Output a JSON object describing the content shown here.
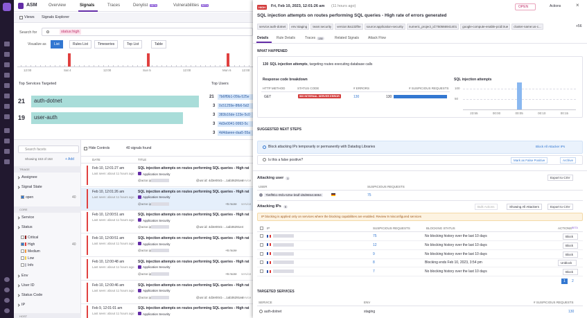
{
  "header": {
    "app": "ASM",
    "tabs": [
      {
        "label": "Overview"
      },
      {
        "label": "Signals"
      },
      {
        "label": "Traces"
      },
      {
        "label": "Denylist",
        "badge": "BETA"
      },
      {
        "label": "Vulnerabilities",
        "badge": "BETA"
      }
    ]
  },
  "subnav": {
    "views": "Views",
    "title": "Signals Explorer"
  },
  "search": {
    "label": "Search for",
    "query": "status:high"
  },
  "visualize": {
    "label": "Visualize as",
    "options": [
      "List",
      "Rules List",
      "Timeseries",
      "Top List",
      "Table"
    ]
  },
  "timeline": {
    "labels": [
      "12:00",
      "Sat 4",
      "12:00",
      "Sun 5",
      "12:00",
      "Mon 6",
      "12:00"
    ]
  },
  "top_services": {
    "title": "Top Services Targeted",
    "items": [
      {
        "count": 21,
        "name": "auth-dotnet"
      },
      {
        "count": 19,
        "name": "user-auth"
      }
    ]
  },
  "top_users": {
    "title": "Top Users",
    "items": [
      {
        "count": 21,
        "name": "7b6ff9b1-05fa-525e"
      },
      {
        "count": 3,
        "name": "0c51259e-8fb6-5d2"
      },
      {
        "count": 3,
        "name": "383b16de-123e-5c0"
      },
      {
        "count": 3,
        "name": "4d3e0041-9993-5c"
      },
      {
        "count": 3,
        "name": "4d4daeee-daa5-55a"
      }
    ]
  },
  "facets": {
    "search": "Search facets",
    "showing": "Showing 153 of 153",
    "add": "+ Add",
    "items": [
      {
        "kind": "section",
        "label": "TRIAGE"
      },
      {
        "kind": "facet",
        "label": "Assignee"
      },
      {
        "kind": "facet",
        "label": "Signal State"
      },
      {
        "kind": "option",
        "label": "open",
        "count": 40,
        "checked": true
      },
      {
        "kind": "section",
        "label": "CORE"
      },
      {
        "kind": "facet",
        "label": "Service"
      },
      {
        "kind": "facet",
        "label": "Status"
      },
      {
        "kind": "option",
        "label": "Critical",
        "color": "#8b1a1a",
        "checked": false
      },
      {
        "kind": "option",
        "label": "High",
        "count": 40,
        "color": "#e0403f",
        "checked": true
      },
      {
        "kind": "option",
        "label": "Medium",
        "color": "#f0963c",
        "checked": false
      },
      {
        "kind": "option",
        "label": "Low",
        "color": "#f5d04a",
        "checked": false
      },
      {
        "kind": "option",
        "label": "Info",
        "color": "#b8b8c4",
        "checked": false
      },
      {
        "kind": "facet",
        "label": "Env"
      },
      {
        "kind": "facet",
        "label": "User ID"
      },
      {
        "kind": "facet",
        "label": "Status Code"
      },
      {
        "kind": "facet",
        "label": "IP"
      },
      {
        "kind": "section",
        "label": "HOST"
      }
    ]
  },
  "signals": {
    "hide": "Hide Controls",
    "found": "40 signals found",
    "columns": [
      "DATE",
      "TITLE"
    ],
    "rows": [
      {
        "date": "Feb 10, 12:01:27 am",
        "seen": "Last seen: about 11 hours ago",
        "title": "SQL injection attempts on routes performing SQL queries - High rat",
        "source": "Application Security",
        "ip": "@actor.ip:",
        "extra": "@usr.id: 4d3e0041-...1ab36291e4",
        "tail": "service"
      },
      {
        "date": "Feb 10, 12:01:26 am",
        "seen": "Last seen: about 11 hours ago",
        "title": "SQL injection attempts on routes performing SQL queries - High rat",
        "source": "Application Security",
        "ip": "@actor.ip:",
        "extra": "+5 more",
        "tail": "service",
        "selected": true
      },
      {
        "date": "Feb 10, 12:00:51 am",
        "seen": "Last seen: about 11 hours ago",
        "title": "SQL injection attempts on routes performing SQL queries - High rat",
        "source": "Application Security",
        "ip": "@actor.ip:",
        "extra": "@usr.id: 4d3e0041-...1ab36291e4"
      },
      {
        "date": "Feb 10, 12:00:51 am",
        "seen": "Last seen: about 11 hours ago",
        "title": "SQL injection attempts on routes performing SQL queries - High rat",
        "source": "Application Security",
        "ip": "@actor.ip:",
        "extra": "+6 more"
      },
      {
        "date": "Feb 10, 12:00:48 am",
        "seen": "Last seen: about 11 hours ago",
        "title": "SQL injection attempts on routes performing SQL queries - High rat",
        "source": "Application Security",
        "ip": "@actor.ip:",
        "extra": "+6 more",
        "tail": "service"
      },
      {
        "date": "Feb 10, 12:00:46 am",
        "seen": "Last seen: about 11 hours ago",
        "title": "SQL injection attempts on routes performing SQL queries - High rat",
        "source": "Application Security",
        "ip": "@actor.ip:",
        "extra": "@usr.id: 4d3e0041-...1ab36291e4",
        "tail": "service"
      },
      {
        "date": "Feb 9, 12:01:01 am",
        "seen": "Last seen: about 11 hours ago",
        "title": "SQL injection attempts on routes performing SQL queries - High rat",
        "source": "Application Security",
        "ip": "@actor.ip:",
        "extra": "+6 more"
      }
    ]
  },
  "panel": {
    "severity": "HIGH",
    "timestamp": "Fri, Feb 10, 2023, 12:01:26 am",
    "ago": "(11 hours ago)",
    "state": "OPEN",
    "actions": "Actions",
    "title": "SQL injection attempts on routes performing SQL queries - High rate of errors generated",
    "tags": [
      "service:auth-dotnet",
      "env:staging",
      "team:security",
      "version:8a132f0e",
      "source:application-security",
      "numeric_project_id:750566941401",
      "google-compute-enable-pcid:true",
      "cluster-name:us-c..."
    ],
    "more_tags": "+56",
    "tabs": [
      {
        "label": "Details"
      },
      {
        "label": "Rule Details"
      },
      {
        "label": "Traces",
        "count": 130
      },
      {
        "label": "Related Signals"
      },
      {
        "label": "Attack Flow"
      }
    ],
    "what_happened": {
      "heading": "WHAT HAPPENED",
      "count": 130,
      "summary": "SQL injection attempts",
      "summary_rest": ", targeting routes executing database calls",
      "breakdown": {
        "title": "Response code breakdown",
        "columns": [
          "HTTP METHOD",
          "STATUS CODE",
          "# ERRORS",
          "# SUSPICIOUS REQUESTS"
        ],
        "rows": [
          {
            "method": "GET",
            "status": "500 INTERNAL SERVER ERROR",
            "errors": 130,
            "suspicious": 130
          }
        ]
      },
      "chart": {
        "type": "bar",
        "title": "SQL injection attempts",
        "categories": [
          "23:55",
          "00:00",
          "00:05",
          "00:10",
          "00:15"
        ],
        "values": [
          0,
          0,
          130,
          0,
          0
        ],
        "color": "#8ab8f0",
        "ylim": [
          0,
          150
        ],
        "yticks": [
          50,
          100
        ]
      }
    },
    "next_steps": {
      "heading": "SUGGESTED NEXT STEPS",
      "block_text": "Block attacking IPs temporarily or permanently with Datadog Libraries",
      "block_action": "Block All Attacker IPs",
      "fp_text": "Is this a false positive?",
      "fp_action": "Mark as False Positive",
      "archive": "Archive"
    },
    "attacking_user": {
      "heading": "Attacking user",
      "count": 1,
      "export": "Export to CSV",
      "columns": [
        "USER",
        "SUSPICIOUS REQUESTS"
      ],
      "rows": [
        {
          "user": "7b6ff9b1-05fa-525e-b6df-d8d9654c6864",
          "requests": 75
        }
      ]
    },
    "attacking_ips": {
      "heading": "Attacking IPs",
      "count": 9,
      "bulk": "Bulk Actions",
      "showing": "Showing All Attackers",
      "export": "Export to CSV",
      "warning": "IP blocking is applied only on services where the blocking capabilities are enabled. Review 9 misconfigured services",
      "columns": [
        "IP",
        "SUSPICIOUS REQUESTS",
        "BLOCKING STATUS",
        "ACTIONS"
      ],
      "actions_badge": "BETA",
      "rows": [
        {
          "requests": 75,
          "status": "No blocking history over the last 10 days",
          "action": "Block"
        },
        {
          "requests": 12,
          "status": "No blocking history over the last 10 days",
          "action": "Block"
        },
        {
          "requests": 9,
          "status": "No blocking history over the last 10 days",
          "action": "Block"
        },
        {
          "requests": 8,
          "status": "Blocking ends Feb 10, 2023, 3:54 pm",
          "action": "Unblock"
        },
        {
          "requests": 7,
          "status": "No blocking history over the last 10 days",
          "action": "Block"
        }
      ],
      "pages": [
        1,
        2
      ]
    },
    "targeted_services": {
      "heading": "TARGETED SERVICES",
      "columns": [
        "SERVICE",
        "ENV",
        "# SUSPICIOUS REQUESTS"
      ],
      "rows": [
        {
          "service": "auth-dotnet",
          "env": "staging",
          "requests": 130
        }
      ]
    }
  }
}
